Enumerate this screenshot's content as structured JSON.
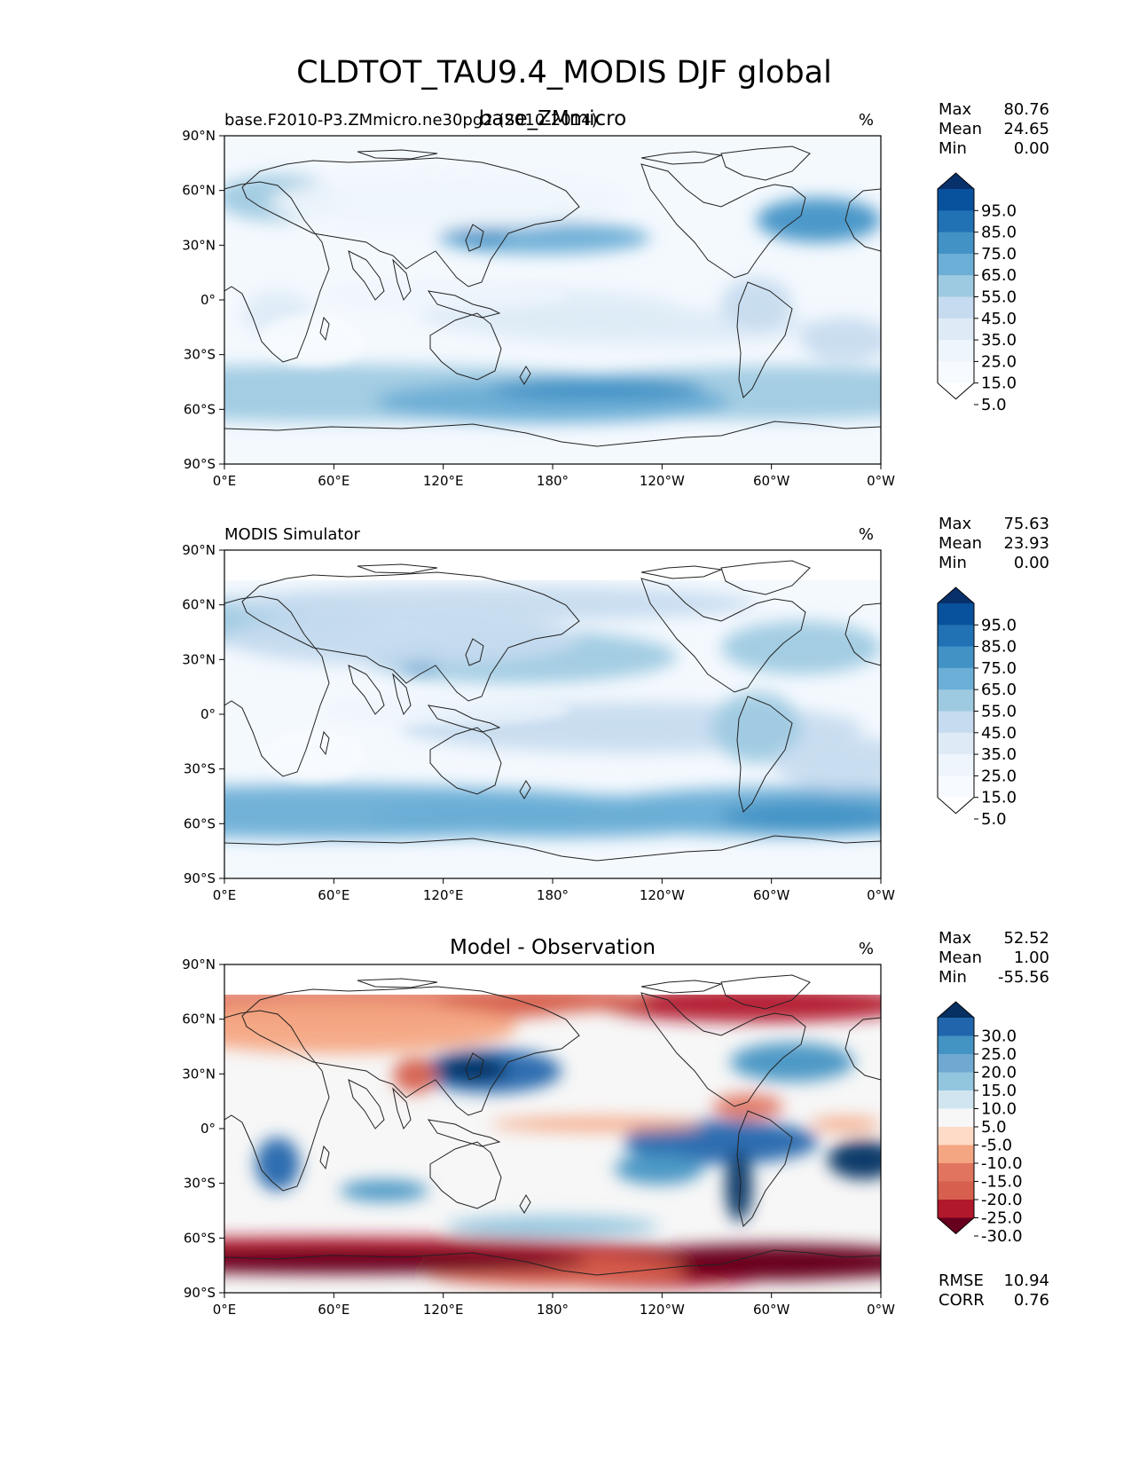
{
  "figure": {
    "title": "CLDTOT_TAU9.4_MODIS DJF global"
  },
  "axes": {
    "lat_ticks": [
      "90°N",
      "60°N",
      "30°N",
      "0°",
      "30°S",
      "60°S",
      "90°S"
    ],
    "lon_ticks": [
      "0°E",
      "60°E",
      "120°E",
      "180°",
      "120°W",
      "60°W",
      "0°W"
    ]
  },
  "panels": [
    {
      "left_title": "base.F2010-P3.ZMmicro.ne30pg2 (2010-2014)",
      "center_title": "base_ZMmicro",
      "units": "%",
      "stats": [
        {
          "label": "Max",
          "value": "80.76"
        },
        {
          "label": "Mean",
          "value": "24.65"
        },
        {
          "label": "Min",
          "value": "0.00"
        }
      ],
      "colorbar_labels": [
        "95.0",
        "85.0",
        "75.0",
        "65.0",
        "55.0",
        "45.0",
        "35.0",
        "25.0",
        "15.0",
        "5.0"
      ],
      "colorbar_colors": [
        "#08306b",
        "#08519c",
        "#2171b5",
        "#4292c6",
        "#6baed6",
        "#9ecae1",
        "#c6dbef",
        "#deebf7",
        "#eef5fc",
        "#f7fbff",
        "#ffffff"
      ]
    },
    {
      "left_title": "MODIS Simulator",
      "center_title": "",
      "units": "%",
      "stats": [
        {
          "label": "Max",
          "value": "75.63"
        },
        {
          "label": "Mean",
          "value": "23.93"
        },
        {
          "label": "Min",
          "value": "0.00"
        }
      ],
      "colorbar_labels": [
        "95.0",
        "85.0",
        "75.0",
        "65.0",
        "55.0",
        "45.0",
        "35.0",
        "25.0",
        "15.0",
        "5.0"
      ],
      "colorbar_colors": [
        "#08306b",
        "#08519c",
        "#2171b5",
        "#4292c6",
        "#6baed6",
        "#9ecae1",
        "#c6dbef",
        "#deebf7",
        "#eef5fc",
        "#f7fbff",
        "#ffffff"
      ]
    },
    {
      "left_title": "",
      "center_title": "Model - Observation",
      "units": "%",
      "stats": [
        {
          "label": "Max",
          "value": "52.52"
        },
        {
          "label": "Mean",
          "value": "1.00"
        },
        {
          "label": "Min",
          "value": "-55.56"
        }
      ],
      "extra_stats": [
        {
          "label": "RMSE",
          "value": "10.94"
        },
        {
          "label": "CORR",
          "value": "0.76"
        }
      ],
      "colorbar_labels": [
        "30.0",
        "25.0",
        "20.0",
        "15.0",
        "10.0",
        "5.0",
        "-5.0",
        "-10.0",
        "-15.0",
        "-20.0",
        "-25.0",
        "-30.0"
      ],
      "colorbar_colors": [
        "#053061",
        "#2166ac",
        "#4393c3",
        "#6fa9d2",
        "#92c5de",
        "#d1e5f0",
        "#f7f7f7",
        "#fddbc7",
        "#f4a582",
        "#e0745f",
        "#d6604d",
        "#b2182b",
        "#67001f"
      ]
    }
  ],
  "chart_data": [
    {
      "type": "heatmap",
      "title": "base_ZMmicro",
      "subtitle": "base.F2010-P3.ZMmicro.ne30pg2 (2010-2014)",
      "units": "%",
      "xlim": [
        0,
        360
      ],
      "ylim": [
        -90,
        90
      ],
      "contour_levels": [
        5,
        15,
        25,
        35,
        45,
        55,
        65,
        75,
        85,
        95
      ],
      "stats": {
        "max": 80.76,
        "mean": 24.65,
        "min": 0.0
      }
    },
    {
      "type": "heatmap",
      "title": "",
      "subtitle": "MODIS Simulator",
      "units": "%",
      "xlim": [
        0,
        360
      ],
      "ylim": [
        -90,
        90
      ],
      "contour_levels": [
        5,
        15,
        25,
        35,
        45,
        55,
        65,
        75,
        85,
        95
      ],
      "stats": {
        "max": 75.63,
        "mean": 23.93,
        "min": 0.0
      }
    },
    {
      "type": "heatmap",
      "title": "Model - Observation",
      "units": "%",
      "xlim": [
        0,
        360
      ],
      "ylim": [
        -90,
        90
      ],
      "contour_levels": [
        -30,
        -25,
        -20,
        -15,
        -10,
        -5,
        5,
        10,
        15,
        20,
        25,
        30
      ],
      "stats": {
        "max": 52.52,
        "mean": 1.0,
        "min": -55.56,
        "rmse": 10.94,
        "corr": 0.76
      }
    }
  ]
}
